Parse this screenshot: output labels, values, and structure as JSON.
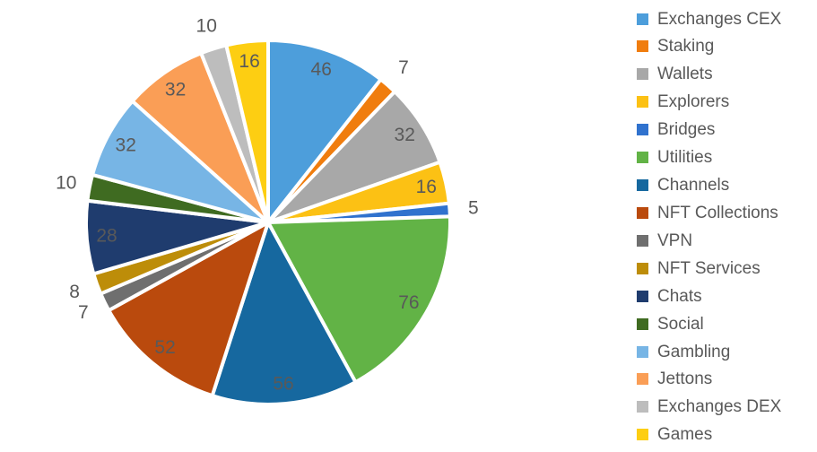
{
  "chart_data": {
    "type": "pie",
    "title": "",
    "legend_position": "right",
    "start_angle_deg": -90,
    "direction": "clockwise",
    "total": 433,
    "background": "#ffffff",
    "value_label_color": "#595959",
    "gap_color": "#ffffff",
    "slices": [
      {
        "label": "Exchanges CEX",
        "value": 46,
        "color": "#4d9edb"
      },
      {
        "label": "Staking",
        "value": 7,
        "color": "#f07d0e"
      },
      {
        "label": "Wallets",
        "value": 32,
        "color": "#a8a8a8"
      },
      {
        "label": "Explorers",
        "value": 16,
        "color": "#fcc114"
      },
      {
        "label": "Bridges",
        "value": 5,
        "color": "#3072ce"
      },
      {
        "label": "Utilities",
        "value": 76,
        "color": "#62b346"
      },
      {
        "label": "Channels",
        "value": 56,
        "color": "#16689f"
      },
      {
        "label": "NFT Collections",
        "value": 52,
        "color": "#ba4a0d"
      },
      {
        "label": "VPN",
        "value": 7,
        "color": "#6f6f6f"
      },
      {
        "label": "NFT Services",
        "value": 8,
        "color": "#bd8d09"
      },
      {
        "label": "Chats",
        "value": 28,
        "color": "#1f3c6e"
      },
      {
        "label": "Social",
        "value": 10,
        "color": "#3f6b21"
      },
      {
        "label": "Gambling",
        "value": 32,
        "color": "#77b5e5"
      },
      {
        "label": "Jettons",
        "value": 32,
        "color": "#fa9e56"
      },
      {
        "label": "Exchanges DEX",
        "value": 10,
        "color": "#bdbdbd"
      },
      {
        "label": "Games",
        "value": 16,
        "color": "#fdce12"
      }
    ]
  }
}
